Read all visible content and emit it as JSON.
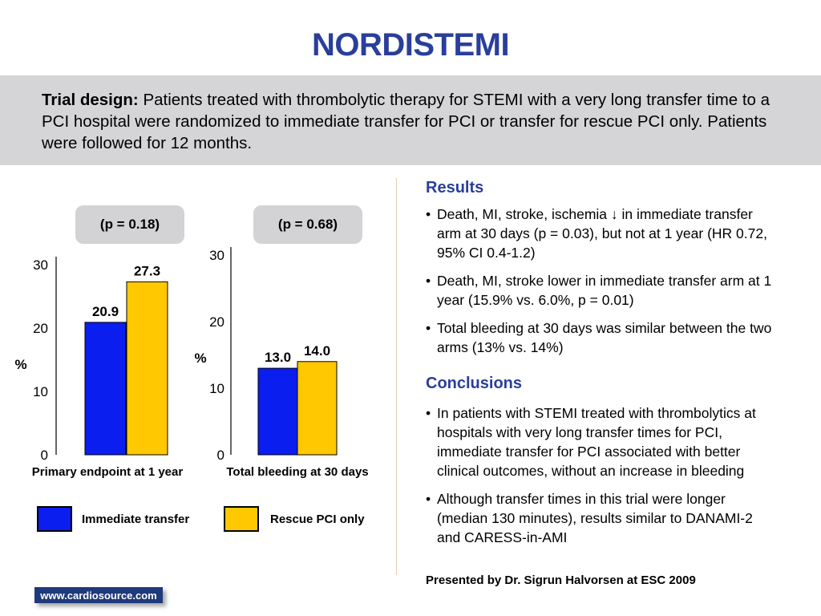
{
  "title": "NORDISTEMI",
  "design": {
    "label": "Trial design:",
    "text": "Patients treated with thrombolytic therapy for STEMI with a very long transfer time to a PCI hospital were randomized to immediate transfer for PCI or transfer for rescue PCI only. Patients were followed for 12 months."
  },
  "colors": {
    "accent": "#2a3e9b",
    "immediate": "#0a1ef0",
    "rescue": "#ffc800",
    "panel": "#d5d5d8"
  },
  "chart_data": [
    {
      "type": "bar",
      "title": "(p = 0.18)",
      "xlabel": "Primary endpoint at 1 year",
      "ylabel": "%",
      "ylim": [
        0,
        30
      ],
      "yticks": [
        0,
        10,
        20,
        30
      ],
      "series": [
        {
          "name": "Immediate transfer",
          "values": [
            20.9
          ],
          "labels": [
            "20.9"
          ]
        },
        {
          "name": "Rescue PCI only",
          "values": [
            27.3
          ],
          "labels": [
            "27.3"
          ]
        }
      ]
    },
    {
      "type": "bar",
      "title": "(p = 0.68)",
      "xlabel": "Total bleeding at 30 days",
      "ylabel": "%",
      "ylim": [
        0,
        30
      ],
      "yticks": [
        0,
        10,
        20,
        30
      ],
      "series": [
        {
          "name": "Immediate transfer",
          "values": [
            13.0
          ],
          "labels": [
            "13.0"
          ]
        },
        {
          "name": "Rescue PCI only",
          "values": [
            14.0
          ],
          "labels": [
            "14.0"
          ]
        }
      ]
    }
  ],
  "legend": {
    "immediate": "Immediate transfer",
    "rescue": "Rescue PCI only"
  },
  "results": {
    "heading": "Results",
    "items": [
      "Death, MI, stroke, ischemia ↓ in immediate transfer arm at 30 days (p = 0.03), but not at 1 year (HR 0.72, 95% CI 0.4-1.2)",
      "Death, MI, stroke lower in immediate transfer arm at 1 year (15.9% vs. 6.0%, p = 0.01)",
      "Total bleeding at 30 days was similar between the two arms (13% vs. 14%)"
    ]
  },
  "conclusions": {
    "heading": "Conclusions",
    "items": [
      "In patients with STEMI treated with thrombolytics at hospitals with very long transfer times for PCI, immediate transfer for PCI associated with better clinical outcomes, without an increase in bleeding",
      "Although transfer times in this trial were longer (median 130 minutes), results similar to DANAMI-2 and CARESS-in-AMI"
    ]
  },
  "presented_by": "Presented by Dr. Sigrun Halvorsen at ESC 2009",
  "footer_logo": "www.cardiosource.com"
}
